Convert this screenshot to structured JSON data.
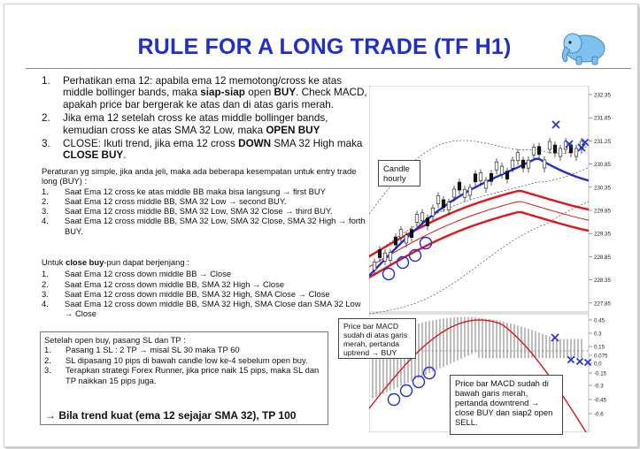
{
  "title": "RULE FOR A LONG TRADE (TF H1)",
  "rules": [
    {
      "num": "1.",
      "text": "Perhatikan ema 12: apabila ema 12 memotong/cross ke atas middle bollinger bands, maka ",
      "b1": "siap-siap",
      "m1": " open ",
      "b2": "BUY",
      "rest": ". Check MACD, apakah price bar bergerak ke atas dan di atas garis merah."
    },
    {
      "num": "2.",
      "text": "Jika ema 12 setelah cross ke atas middle bollinger bands, kemudian cross ke atas SMA 32 Low, maka ",
      "b1": "OPEN BUY",
      "m1": "",
      "b2": "",
      "rest": ""
    },
    {
      "num": "3.",
      "text": "CLOSE: Ikuti trend, jika ema 12 cross ",
      "b1": "DOWN",
      "m1": " SMA 32 High maka ",
      "b2": "CLOSE BUY",
      "rest": "."
    }
  ],
  "buy_intro": "Peraturan yg simple, jika anda jeli, maka ada beberapa kesempatan untuk entry trade long (BUY) :",
  "buy_list": [
    {
      "num": "1.",
      "text": "Saat Ema 12 cross ke atas middle BB maka bisa langsung → first BUY"
    },
    {
      "num": "2.",
      "text": "Saat Ema 12 cross middle BB, SMA 32 Low → second BUY."
    },
    {
      "num": "3.",
      "text": "Saat Ema 12 cross middle BB, SMA 32 Low, SMA 32 Close → third BUY."
    },
    {
      "num": "4.",
      "text": "Saat Ema 12 cross middle BB, SMA 32 Low, SMA 32 Close, SMA 32 High → forth BUY."
    }
  ],
  "close_intro_pre": "Untuk ",
  "close_intro_bold": "close buy",
  "close_intro_post": "-pun dapat berjenjang :",
  "close_list": [
    {
      "num": "1.",
      "text": "Saat Ema 12 cross down middle BB → Close"
    },
    {
      "num": "2.",
      "text": "Saat Ema 12 cross down middle BB, SMA 32 High → Close"
    },
    {
      "num": "3.",
      "text": "Saat Ema 12 cross down middle BB, SMA 32 High, SMA Close → Close"
    },
    {
      "num": "4.",
      "text": "Saat Ema 12 cross down middle BB, SMA 32 High, SMA Close dan SMA 32 Low → Close"
    }
  ],
  "sltp_intro": "Setelah open buy, pasang SL dan TP :",
  "sltp_list": [
    {
      "num": "1.",
      "text": "Pasang 1 SL : 2 TP → misal SL 30 maka TP 60"
    },
    {
      "num": "2.",
      "text": "SL dipasang 10 pips di bawah candle low ke-4 sebelum open buy."
    },
    {
      "num": "3.",
      "text": "Terapkan strategi Forex Runner, jika price naik 15 pips, maka SL dan TP naikkan 15 pips juga."
    }
  ],
  "bottom_note": "→ Bila trend kuat (ema 12 sejajar SMA 32), TP 100",
  "callouts": {
    "candle": "Candle hourly",
    "macd_up": "Price bar MACD sudah di atas garis merah, pertanda uptrend → BUY",
    "macd_down": "Price bar MACD sudah di bawah garis merah, pertanda downtrend → close BUY dan siap2 open SELL."
  },
  "price_axis": [
    "232.35",
    "231.85",
    "231.25",
    "230.85",
    "230.35",
    "229.85",
    "229.35",
    "228.85",
    "228.35",
    "227.85"
  ],
  "macd_axis": [
    "0.45",
    "0.3",
    "0.15",
    "0.075",
    "0.0",
    "-0.15",
    "-0.3",
    "-0.45",
    "-0.6"
  ],
  "colors": {
    "title": "#1f2fc8",
    "ema": "#1f2fd6",
    "sma": "#e0161b",
    "marker": "#1f2fd6"
  }
}
